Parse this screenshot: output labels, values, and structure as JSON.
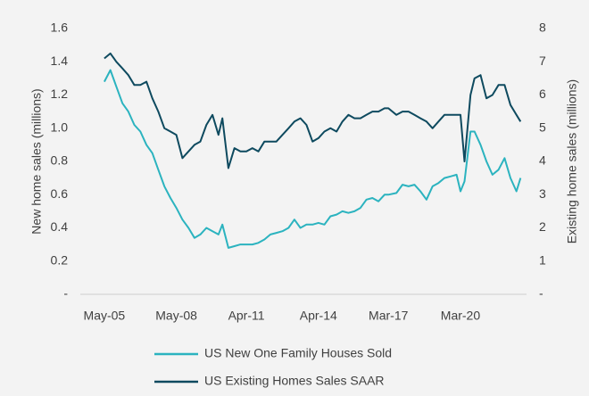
{
  "chart_data": {
    "type": "line",
    "y_label": "New home sales (millions)",
    "y2_label": "Existing home sales (millions)",
    "x": [
      "May-05",
      "Aug-05",
      "Nov-05",
      "Feb-06",
      "May-06",
      "Aug-06",
      "Nov-06",
      "Feb-07",
      "May-07",
      "Aug-07",
      "Nov-07",
      "Feb-08",
      "May-08",
      "Aug-08",
      "Nov-08",
      "Feb-09",
      "May-09",
      "Aug-09",
      "Nov-09",
      "Feb-10",
      "Apr-10",
      "Jul-10",
      "Oct-10",
      "Jan-11",
      "Apr-11",
      "Jul-11",
      "Oct-11",
      "Jan-12",
      "Apr-12",
      "Jul-12",
      "Oct-12",
      "Jan-13",
      "Apr-13",
      "Jul-13",
      "Oct-13",
      "Jan-14",
      "Apr-14",
      "Jul-14",
      "Oct-14",
      "Jan-15",
      "Apr-15",
      "Jul-15",
      "Oct-15",
      "Jan-16",
      "Apr-16",
      "Jul-16",
      "Oct-16",
      "Jan-17",
      "Mar-17",
      "Jul-17",
      "Oct-17",
      "Jan-18",
      "Apr-18",
      "Jul-18",
      "Oct-18",
      "Jan-19",
      "Apr-19",
      "Jul-19",
      "Oct-19",
      "Jan-20",
      "Mar-20",
      "May-20",
      "Aug-20",
      "Oct-20",
      "Jan-21",
      "Apr-21",
      "Jul-21",
      "Oct-21",
      "Jan-22",
      "Apr-22",
      "Jul-22",
      "Sep-22"
    ],
    "xlim": [
      "May-04",
      "Dec-22"
    ],
    "xticks": [
      "May-05",
      "May-08",
      "Apr-11",
      "Apr-14",
      "Mar-17",
      "Mar-20"
    ],
    "ylim": [
      0,
      1.6
    ],
    "yticks": [
      {
        "value": 0,
        "label": "-"
      },
      0.2,
      0.4,
      0.6,
      0.8,
      {
        "value": 1,
        "label": "1.0"
      },
      1.2,
      1.4,
      1.6
    ],
    "y2lim": [
      0,
      8
    ],
    "y2ticks": [
      {
        "value": 0,
        "label": "-"
      },
      1,
      2,
      3,
      4,
      5,
      6,
      7,
      8
    ],
    "series": [
      {
        "name": "US New One Family Houses Sold",
        "color": "#2bb3bf",
        "values": [
          1.28,
          1.35,
          1.25,
          1.15,
          1.1,
          1.02,
          0.98,
          0.9,
          0.85,
          0.75,
          0.65,
          0.58,
          0.52,
          0.45,
          0.4,
          0.34,
          0.36,
          0.4,
          0.38,
          0.36,
          0.42,
          0.28,
          0.29,
          0.3,
          0.3,
          0.3,
          0.31,
          0.33,
          0.36,
          0.37,
          0.38,
          0.4,
          0.45,
          0.4,
          0.42,
          0.42,
          0.43,
          0.42,
          0.47,
          0.48,
          0.5,
          0.49,
          0.5,
          0.52,
          0.57,
          0.58,
          0.56,
          0.6,
          0.6,
          0.61,
          0.66,
          0.65,
          0.66,
          0.62,
          0.57,
          0.65,
          0.67,
          0.7,
          0.71,
          0.72,
          0.62,
          0.68,
          0.98,
          0.98,
          0.9,
          0.8,
          0.72,
          0.75,
          0.82,
          0.7,
          0.62,
          0.7
        ]
      },
      {
        "name": "US Existing Homes Sales SAAR",
        "color": "#0e4a5f",
        "axis": "y2",
        "values": [
          7.1,
          7.25,
          7.0,
          6.8,
          6.6,
          6.3,
          6.3,
          6.4,
          5.9,
          5.5,
          5.0,
          4.9,
          4.8,
          4.1,
          4.3,
          4.5,
          4.6,
          5.1,
          5.4,
          4.8,
          5.3,
          3.8,
          4.4,
          4.3,
          4.3,
          4.4,
          4.3,
          4.6,
          4.6,
          4.6,
          4.8,
          5.0,
          5.2,
          5.3,
          5.1,
          4.6,
          4.7,
          4.9,
          5.0,
          4.9,
          5.2,
          5.4,
          5.3,
          5.3,
          5.4,
          5.5,
          5.5,
          5.6,
          5.6,
          5.4,
          5.5,
          5.5,
          5.4,
          5.3,
          5.2,
          5.0,
          5.2,
          5.4,
          5.4,
          5.4,
          5.4,
          4.0,
          6.0,
          6.5,
          6.6,
          5.9,
          6.0,
          6.3,
          6.3,
          5.7,
          5.4,
          5.2
        ]
      }
    ]
  }
}
